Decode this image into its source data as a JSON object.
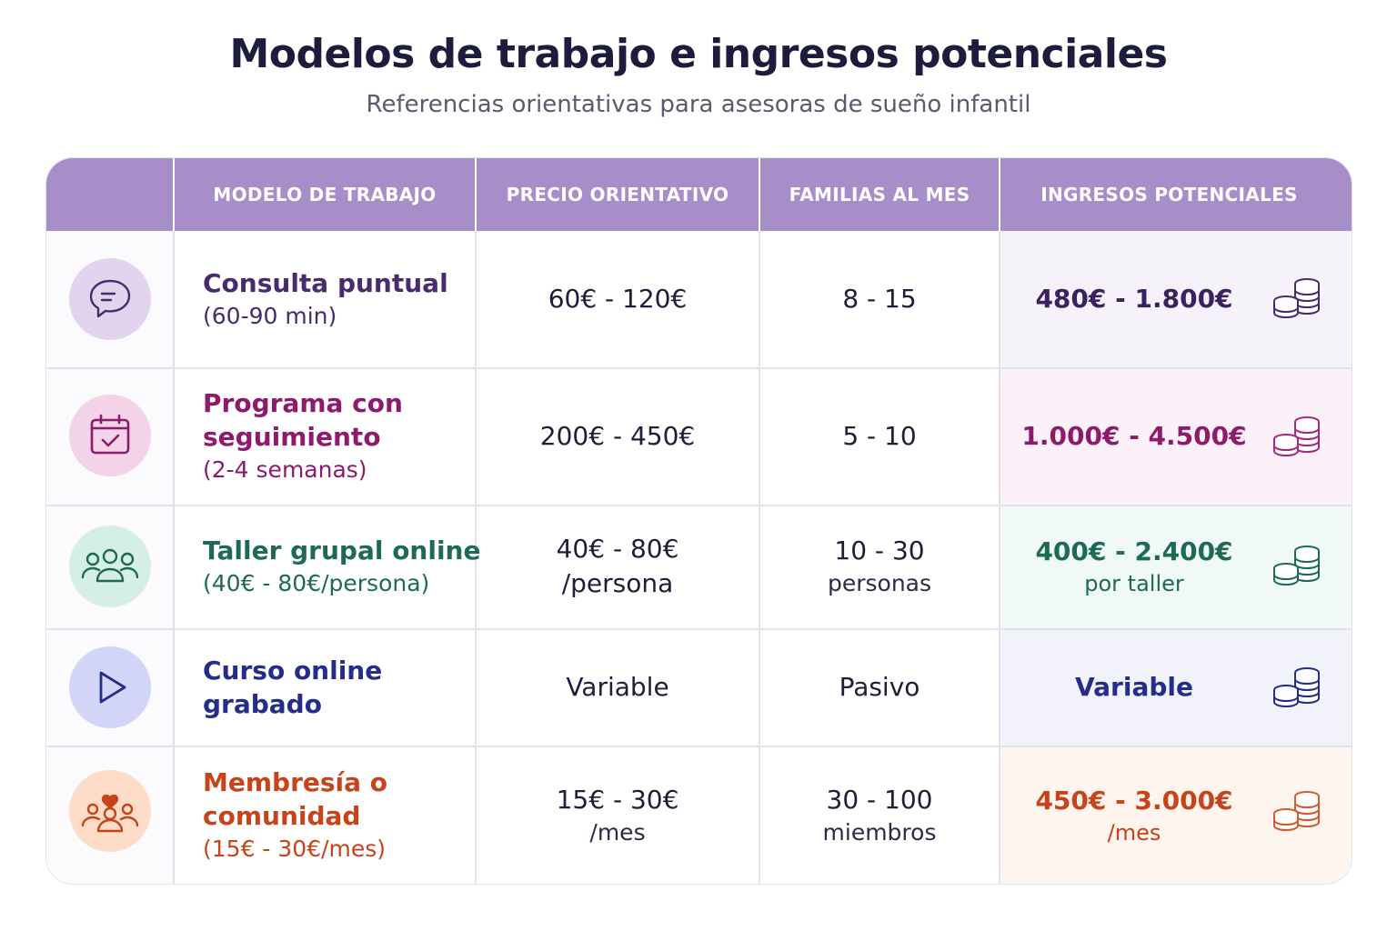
{
  "header": {
    "title": "Modelos de trabajo e ingresos potenciales",
    "subtitle": "Referencias orientativas para asesoras de sueño infantil"
  },
  "table": {
    "columns": [
      "MODELO DE TRABAJO",
      "PRECIO ORIENTATIVO",
      "FAMILIAS AL MES",
      "INGRESOS POTENCIALES"
    ],
    "rows": [
      {
        "icon": "chat-bubble-icon",
        "accent": "#4a2a6e",
        "model_name_lines": [
          "Consulta puntual"
        ],
        "model_note": "(60-90 min)",
        "price": "60€ - 120€",
        "price_sub": "",
        "families": "8 - 15",
        "families_sub": "",
        "income": "480€ - 1.800€",
        "income_sub": ""
      },
      {
        "icon": "calendar-check-icon",
        "accent": "#8e1a6e",
        "model_name_lines": [
          "Programa con",
          "seguimiento"
        ],
        "model_note": "(2-4 semanas)",
        "price": "200€ - 450€",
        "price_sub": "",
        "families": "5 - 10",
        "families_sub": "",
        "income": "1.000€ - 4.500€",
        "income_sub": ""
      },
      {
        "icon": "group-icon",
        "accent": "#1e6a58",
        "model_name_lines": [
          "Taller grupal online"
        ],
        "model_note": "(40€ - 80€/persona)",
        "price": "40€ - 80€",
        "price_sub": "/persona",
        "families": "10 - 30",
        "families_sub": "personas",
        "income": "400€ - 2.400€",
        "income_sub": "por taller"
      },
      {
        "icon": "play-icon",
        "accent": "#252d8a",
        "model_name_lines": [
          "Curso online",
          "grabado"
        ],
        "model_note": "",
        "price": "Variable",
        "price_sub": "",
        "families": "Pasivo",
        "families_sub": "",
        "income": "Variable",
        "income_sub": ""
      },
      {
        "icon": "community-heart-icon",
        "accent": "#c8431a",
        "model_name_lines": [
          "Membresía o",
          "comunidad"
        ],
        "model_note": "(15€ - 30€/mes)",
        "price": "15€ - 30€",
        "price_sub": "/mes",
        "families": "30 - 100",
        "families_sub": "miembros",
        "income": "450€ - 3.000€",
        "income_sub": "/mes"
      }
    ]
  },
  "icon_colors": {
    "bg": [
      "#e2d4ee",
      "#f3d3e8",
      "#d6efe4",
      "#d2d5f7",
      "#fddcc8"
    ],
    "income_bg": [
      "#f6f2fa",
      "#fcf1f8",
      "#f1f9f6",
      "#f2f2fb",
      "#fdf5ee"
    ]
  }
}
